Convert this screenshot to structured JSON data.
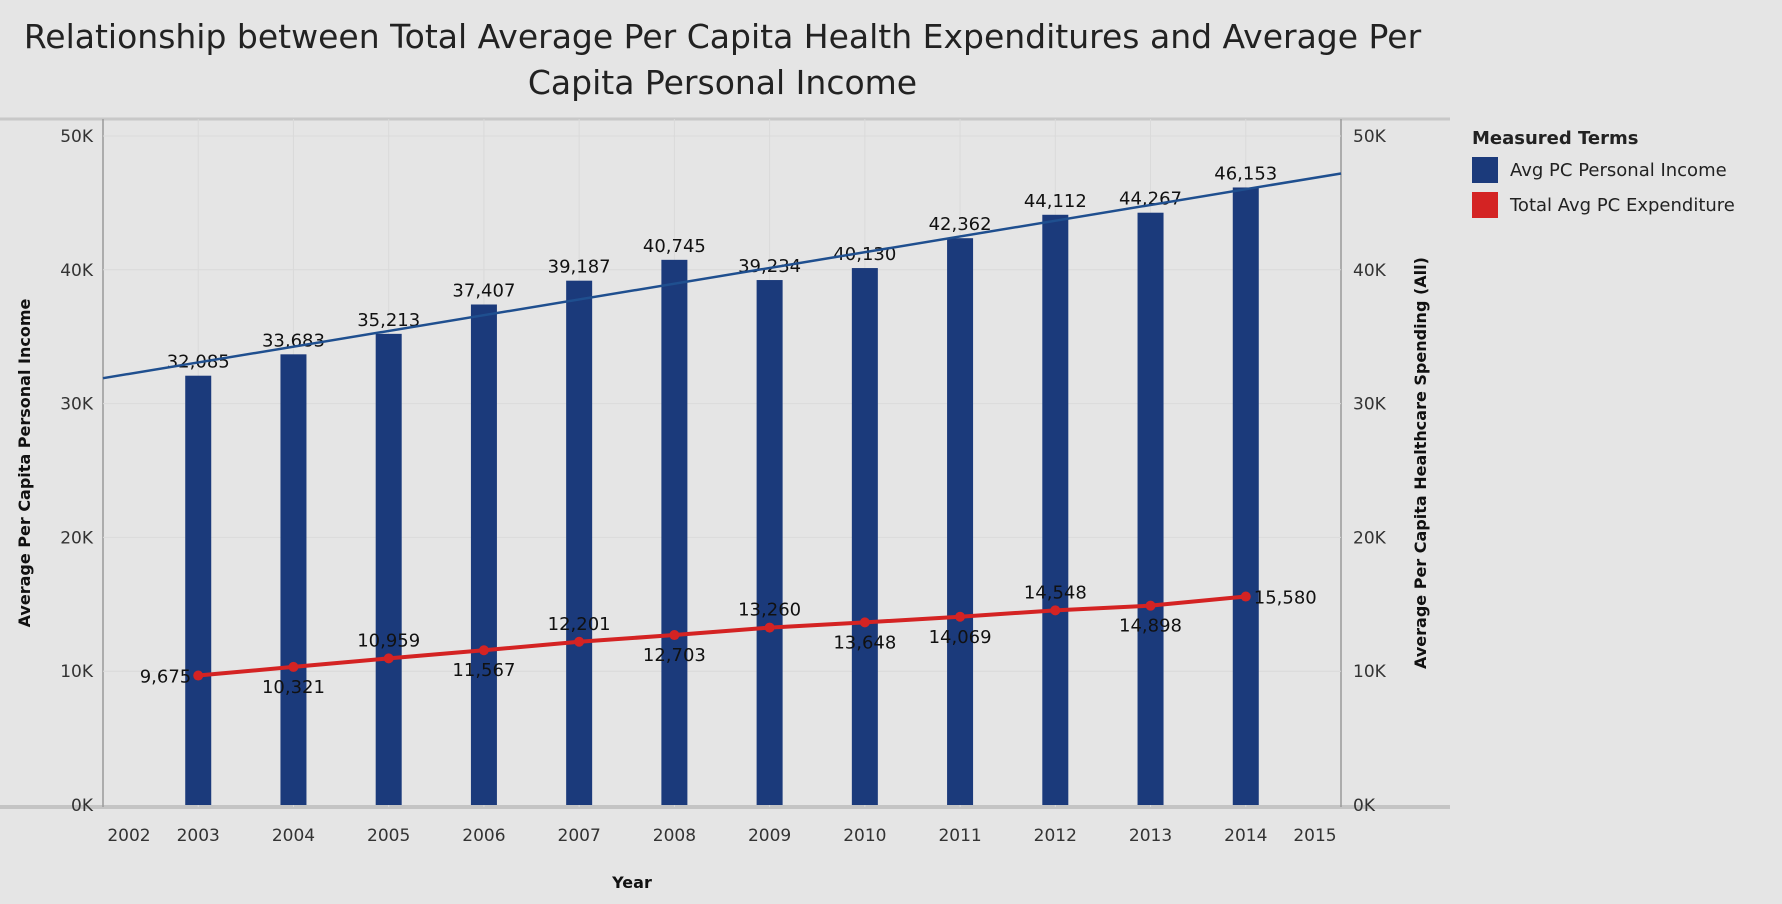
{
  "chart_data": {
    "type": "bar+line",
    "title": "Relationship between Total Average Per Capita Health Expenditures and Average Per Capita Personal Income",
    "xlabel": "Year",
    "ylabel_left": "Average Per Capita Personal Income",
    "ylabel_right": "Average Per Capita Healthcare Spending (All)",
    "x_ticks": [
      "2002",
      "2003",
      "2004",
      "2005",
      "2006",
      "2007",
      "2008",
      "2009",
      "2010",
      "2011",
      "2012",
      "2013",
      "2014",
      "2015"
    ],
    "y_ticks": [
      "0K",
      "10K",
      "20K",
      "30K",
      "40K",
      "50K"
    ],
    "ylim": [
      0,
      50000
    ],
    "xlim": [
      2002,
      2015
    ],
    "categories": [
      "2003",
      "2004",
      "2005",
      "2006",
      "2007",
      "2008",
      "2009",
      "2010",
      "2011",
      "2012",
      "2013",
      "2014"
    ],
    "series": [
      {
        "name": "Avg PC Personal Income",
        "type": "bar",
        "color": "#1b3a7b",
        "values": [
          32085,
          33683,
          35213,
          37407,
          39187,
          40745,
          39234,
          40130,
          42362,
          44112,
          44267,
          46153
        ],
        "labels": [
          "32,085",
          "33,683",
          "35,213",
          "37,407",
          "39,187",
          "40,745",
          "39,234",
          "40,130",
          "42,362",
          "44,112",
          "44,267",
          "46,153"
        ],
        "trend": {
          "start": [
            2002,
            31900
          ],
          "end": [
            2015,
            47200
          ]
        }
      },
      {
        "name": "Total Avg PC Expenditure",
        "type": "line",
        "color": "#d42323",
        "values": [
          9675,
          10321,
          10959,
          11567,
          12201,
          12703,
          13260,
          13648,
          14069,
          14548,
          14898,
          15580
        ],
        "labels": [
          "9,675",
          "10,321",
          "10,959",
          "11,567",
          "12,201",
          "12,703",
          "13,260",
          "13,648",
          "14,069",
          "14,548",
          "14,898",
          "15,580"
        ]
      }
    ],
    "legend": {
      "title": "Measured Terms",
      "position": "top-right"
    },
    "grid": true
  }
}
